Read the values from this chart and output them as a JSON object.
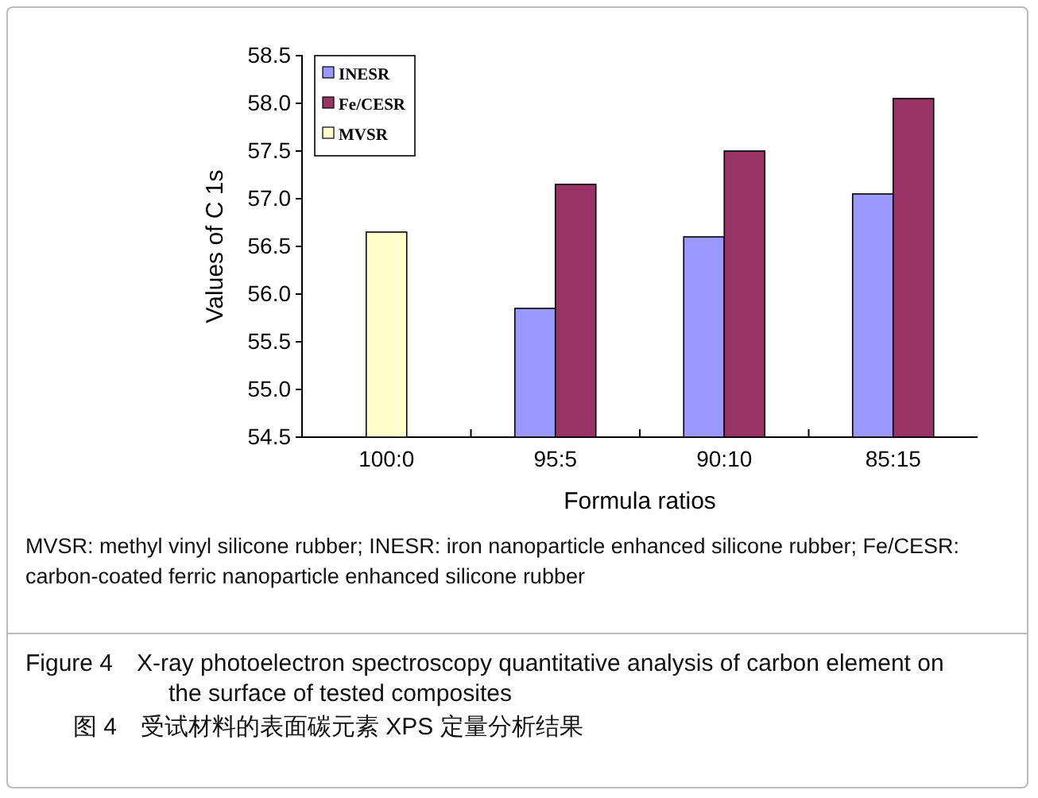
{
  "chart_data": {
    "type": "bar",
    "categories": [
      "100:0",
      "95:5",
      "90:10",
      "85:15"
    ],
    "series": [
      {
        "name": "INESR",
        "color": "#9999ff",
        "values": [
          null,
          55.85,
          56.6,
          57.05
        ]
      },
      {
        "name": "Fe/CESR",
        "color": "#993366",
        "values": [
          null,
          57.15,
          57.5,
          58.05
        ]
      },
      {
        "name": "MVSR",
        "color": "#ffffcc",
        "values": [
          56.65,
          null,
          null,
          null
        ]
      }
    ],
    "xlabel": "Formula ratios",
    "ylabel": "Values of C 1s",
    "ylim": [
      54.5,
      58.5
    ],
    "yticks": [
      {
        "value": 54.5,
        "label": "54.5"
      },
      {
        "value": 55,
        "label": "55.0"
      },
      {
        "value": 55.5,
        "label": "55.5"
      },
      {
        "value": 56,
        "label": "56.0"
      },
      {
        "value": 56.5,
        "label": "56.5"
      },
      {
        "value": 57,
        "label": "57.0"
      },
      {
        "value": 57.5,
        "label": "57.5"
      },
      {
        "value": 58,
        "label": "58.0"
      },
      {
        "value": 58.5,
        "label": "58.5"
      }
    ],
    "legend": "top left",
    "grid": false,
    "annotations": [
      "MVSR: methyl vinyl silicone rubber; INESR: iron nanoparticle enhanced silicone rubber; Fe/CESR: carbon-coated ferric nanoparticle enhanced silicone rubber",
      "Figure 4 X-ray photoelectron spectroscopy quantitative analysis of carbon element on the surface of tested composites",
      "图 4 受试材料的表面碳元素 XPS 定量分析结果"
    ]
  }
}
